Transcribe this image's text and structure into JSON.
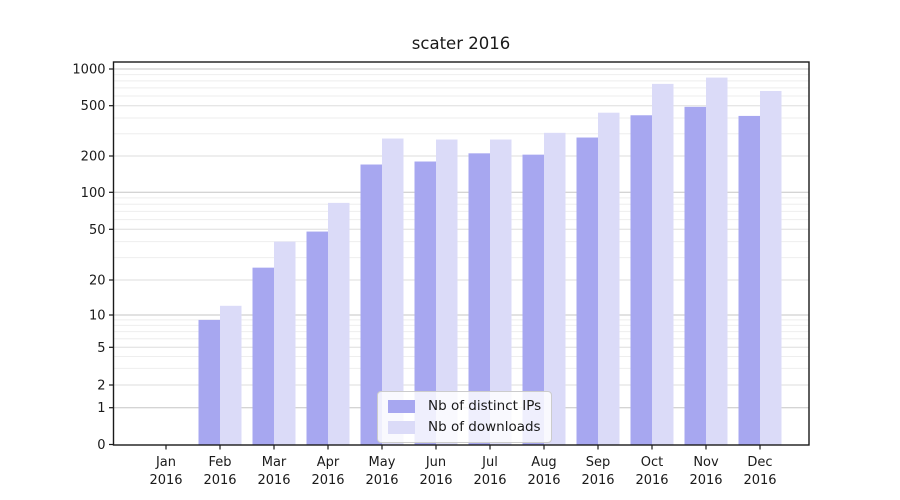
{
  "chart_data": {
    "type": "bar",
    "title": "scater 2016",
    "categories": [
      "Jan",
      "Feb",
      "Mar",
      "Apr",
      "May",
      "Jun",
      "Jul",
      "Aug",
      "Sep",
      "Oct",
      "Nov",
      "Dec"
    ],
    "category_year": "2016",
    "series": [
      {
        "name": "Nb of distinct IPs",
        "color": "#a7a7f0",
        "values": [
          0,
          9,
          25,
          48,
          170,
          180,
          210,
          205,
          280,
          420,
          490,
          415
        ]
      },
      {
        "name": "Nb of downloads",
        "color": "#dbdbf8",
        "values": [
          0,
          12,
          40,
          82,
          275,
          270,
          270,
          305,
          440,
          755,
          850,
          660
        ]
      }
    ],
    "yticks": [
      0,
      1,
      2,
      5,
      10,
      20,
      50,
      100,
      200,
      500,
      1000
    ],
    "yscale": "symlog",
    "ylim": [
      0,
      1120
    ],
    "xlabel": "",
    "ylabel": "",
    "grid": true,
    "legend_position": "lower center"
  }
}
